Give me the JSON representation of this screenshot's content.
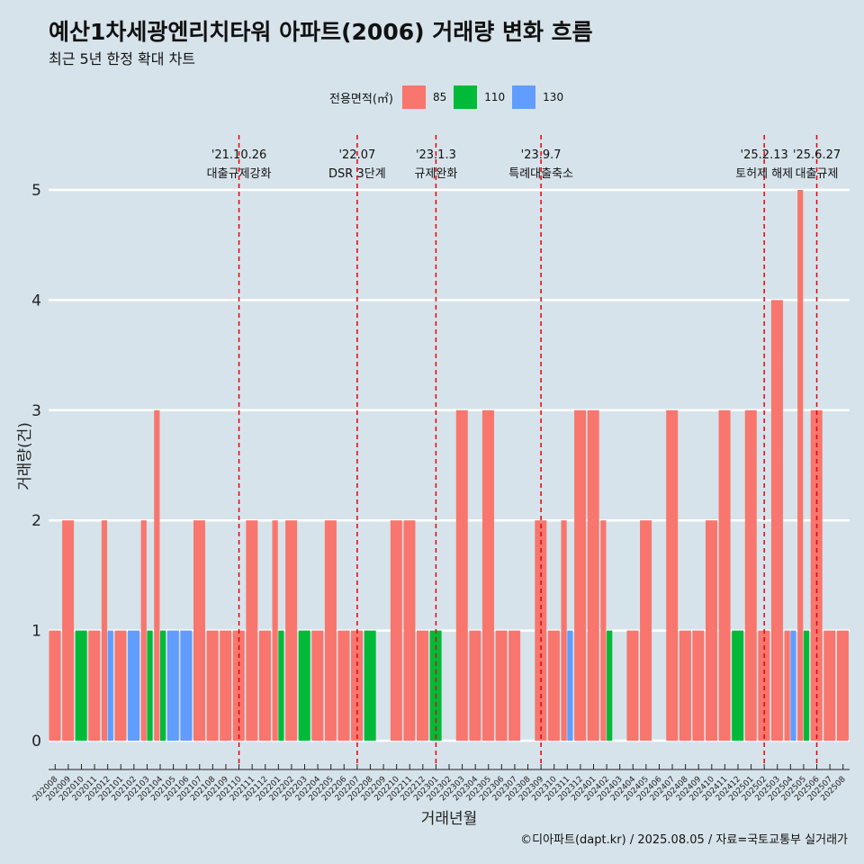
{
  "title": "예산1차세광엔리치타워 아파트(2006) 거래량 변화 흐름",
  "subtitle": "최근 5년 한정 확대 차트",
  "caption": "©디아파트(dapt.kr) / 2025.08.05 / 자료=국토교통부 실거래가",
  "colors": {
    "background": "#d6e3ea",
    "85": "#f8766d",
    "110": "#00ba38",
    "130": "#619cff",
    "event_line": "#e8000b",
    "grid": "#ffffff"
  },
  "legend": {
    "title": "전용면적(㎡)",
    "position": "top",
    "items": [
      {
        "label": "85",
        "color": "#f8766d"
      },
      {
        "label": "110",
        "color": "#00ba38"
      },
      {
        "label": "130",
        "color": "#619cff"
      }
    ]
  },
  "chart_data": {
    "type": "bar",
    "stacking": "dodge",
    "xlabel": "거래년월",
    "ylabel": "거래량(건)",
    "ylim": [
      0,
      5
    ],
    "yticks": [
      0,
      1,
      2,
      3,
      4,
      5
    ],
    "grid": true,
    "x": [
      "202008",
      "202009",
      "202010",
      "202011",
      "202012",
      "202101",
      "202102",
      "202103",
      "202104",
      "202105",
      "202106",
      "202107",
      "202108",
      "202109",
      "202110",
      "202111",
      "202112",
      "202201",
      "202202",
      "202203",
      "202204",
      "202205",
      "202206",
      "202207",
      "202208",
      "202209",
      "202210",
      "202211",
      "202212",
      "202301",
      "202302",
      "202303",
      "202304",
      "202305",
      "202306",
      "202307",
      "202308",
      "202309",
      "202310",
      "202311",
      "202312",
      "202401",
      "202402",
      "202403",
      "202404",
      "202405",
      "202406",
      "202407",
      "202408",
      "202409",
      "202410",
      "202411",
      "202412",
      "202501",
      "202502",
      "202503",
      "202504",
      "202505",
      "202506",
      "202507",
      "202508"
    ],
    "series": [
      {
        "name": "85",
        "color": "#f8766d",
        "values": [
          1,
          2,
          0,
          1,
          2,
          1,
          0,
          2,
          3,
          0,
          0,
          2,
          1,
          1,
          1,
          2,
          1,
          2,
          2,
          0,
          1,
          2,
          1,
          1,
          0,
          0,
          2,
          2,
          1,
          0,
          0,
          3,
          1,
          3,
          1,
          1,
          0,
          2,
          1,
          2,
          3,
          3,
          2,
          0,
          1,
          2,
          0,
          3,
          1,
          1,
          2,
          3,
          0,
          3,
          1,
          4,
          1,
          5,
          3,
          1,
          1
        ]
      },
      {
        "name": "110",
        "color": "#00ba38",
        "values": [
          0,
          0,
          1,
          0,
          0,
          0,
          0,
          1,
          1,
          0,
          0,
          0,
          0,
          0,
          0,
          0,
          0,
          1,
          0,
          1,
          0,
          0,
          0,
          0,
          1,
          0,
          0,
          0,
          0,
          1,
          0,
          0,
          0,
          0,
          0,
          0,
          0,
          0,
          0,
          0,
          0,
          0,
          1,
          0,
          0,
          0,
          0,
          0,
          0,
          0,
          0,
          0,
          1,
          0,
          0,
          0,
          0,
          1,
          0,
          0,
          0
        ]
      },
      {
        "name": "130",
        "color": "#619cff",
        "values": [
          0,
          0,
          0,
          0,
          1,
          0,
          1,
          0,
          0,
          1,
          1,
          0,
          0,
          0,
          0,
          0,
          0,
          0,
          0,
          0,
          0,
          0,
          0,
          0,
          0,
          0,
          0,
          0,
          0,
          0,
          0,
          0,
          0,
          0,
          0,
          0,
          0,
          0,
          0,
          1,
          0,
          0,
          0,
          0,
          0,
          0,
          0,
          0,
          0,
          0,
          0,
          0,
          0,
          0,
          0,
          0,
          1,
          0,
          0,
          0,
          0
        ]
      }
    ],
    "events": [
      {
        "at": "202110",
        "date": "'21.10.26",
        "label": "대출규제강화"
      },
      {
        "at": "202207",
        "date": "'22.07",
        "label": "DSR 3단계"
      },
      {
        "at": "202301",
        "date": "'23.1.3",
        "label": "규제완화"
      },
      {
        "at": "202309",
        "date": "'23.9.7",
        "label": "특례대출축소"
      },
      {
        "at": "202502",
        "date": "'25.2.13",
        "label": "토허제 해제"
      },
      {
        "at": "202506",
        "date": "'25.6.27",
        "label": "대출규제"
      }
    ]
  }
}
